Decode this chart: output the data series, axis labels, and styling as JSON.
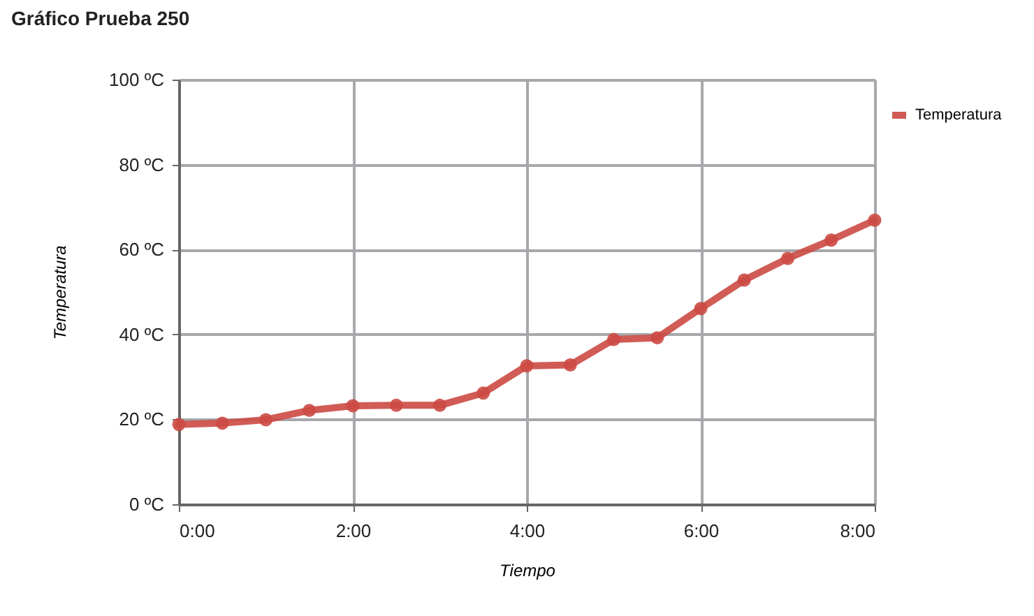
{
  "chart_data": {
    "type": "line",
    "title": "Gráfico Prueba 250",
    "xlabel": "Tiempo",
    "ylabel": "Temperatura",
    "x": [
      0,
      0.5,
      1,
      1.5,
      2,
      2.5,
      3,
      3.5,
      4,
      4.5,
      5,
      5.5,
      6,
      6.5,
      7,
      7.5,
      8
    ],
    "series": [
      {
        "name": "Temperatura",
        "color": "#cc4a44",
        "values": [
          18.8,
          19.1,
          19.9,
          22.1,
          23.2,
          23.3,
          23.3,
          26.2,
          32.6,
          32.8,
          38.8,
          39.2,
          46.1,
          52.8,
          57.9,
          62.2,
          66.9
        ]
      }
    ],
    "xlim": [
      0,
      8
    ],
    "xticks": [
      {
        "value": 0,
        "label": "0:00"
      },
      {
        "value": 2,
        "label": "2:00"
      },
      {
        "value": 4,
        "label": "4:00"
      },
      {
        "value": 6,
        "label": "6:00"
      },
      {
        "value": 8,
        "label": "8:00"
      }
    ],
    "ylim": [
      0,
      100
    ],
    "yticks": [
      {
        "value": 0,
        "label": "0 ºC"
      },
      {
        "value": 20,
        "label": "20 ºC"
      },
      {
        "value": 40,
        "label": "40 ºC"
      },
      {
        "value": 60,
        "label": "60 ºC"
      },
      {
        "value": 80,
        "label": "80 ºC"
      },
      {
        "value": 100,
        "label": "100 ºC"
      }
    ],
    "grid": true,
    "legend": "top right",
    "marker": "circle",
    "line_style": "solid"
  }
}
